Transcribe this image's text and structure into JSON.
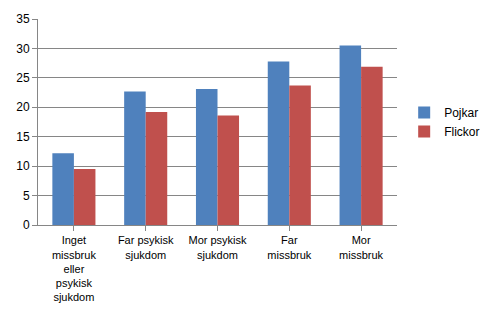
{
  "chart_data": {
    "type": "bar",
    "categories": [
      "Inget missbruk eller psykisk sjukdom",
      "Far psykisk sjukdom",
      "Mor psykisk sjukdom",
      "Far missbruk",
      "Mor missbruk"
    ],
    "series": [
      {
        "name": "Pojkar",
        "color": "#4f81bd",
        "values": [
          12.2,
          22.7,
          23.1,
          27.8,
          30.5
        ]
      },
      {
        "name": "Flickor",
        "color": "#c0504d",
        "values": [
          9.5,
          19.2,
          18.6,
          23.7,
          26.9
        ]
      }
    ],
    "ylim": [
      0,
      35
    ],
    "yticks": [
      0,
      5,
      10,
      15,
      20,
      25,
      30,
      35
    ],
    "grid": true,
    "legend": "right"
  }
}
